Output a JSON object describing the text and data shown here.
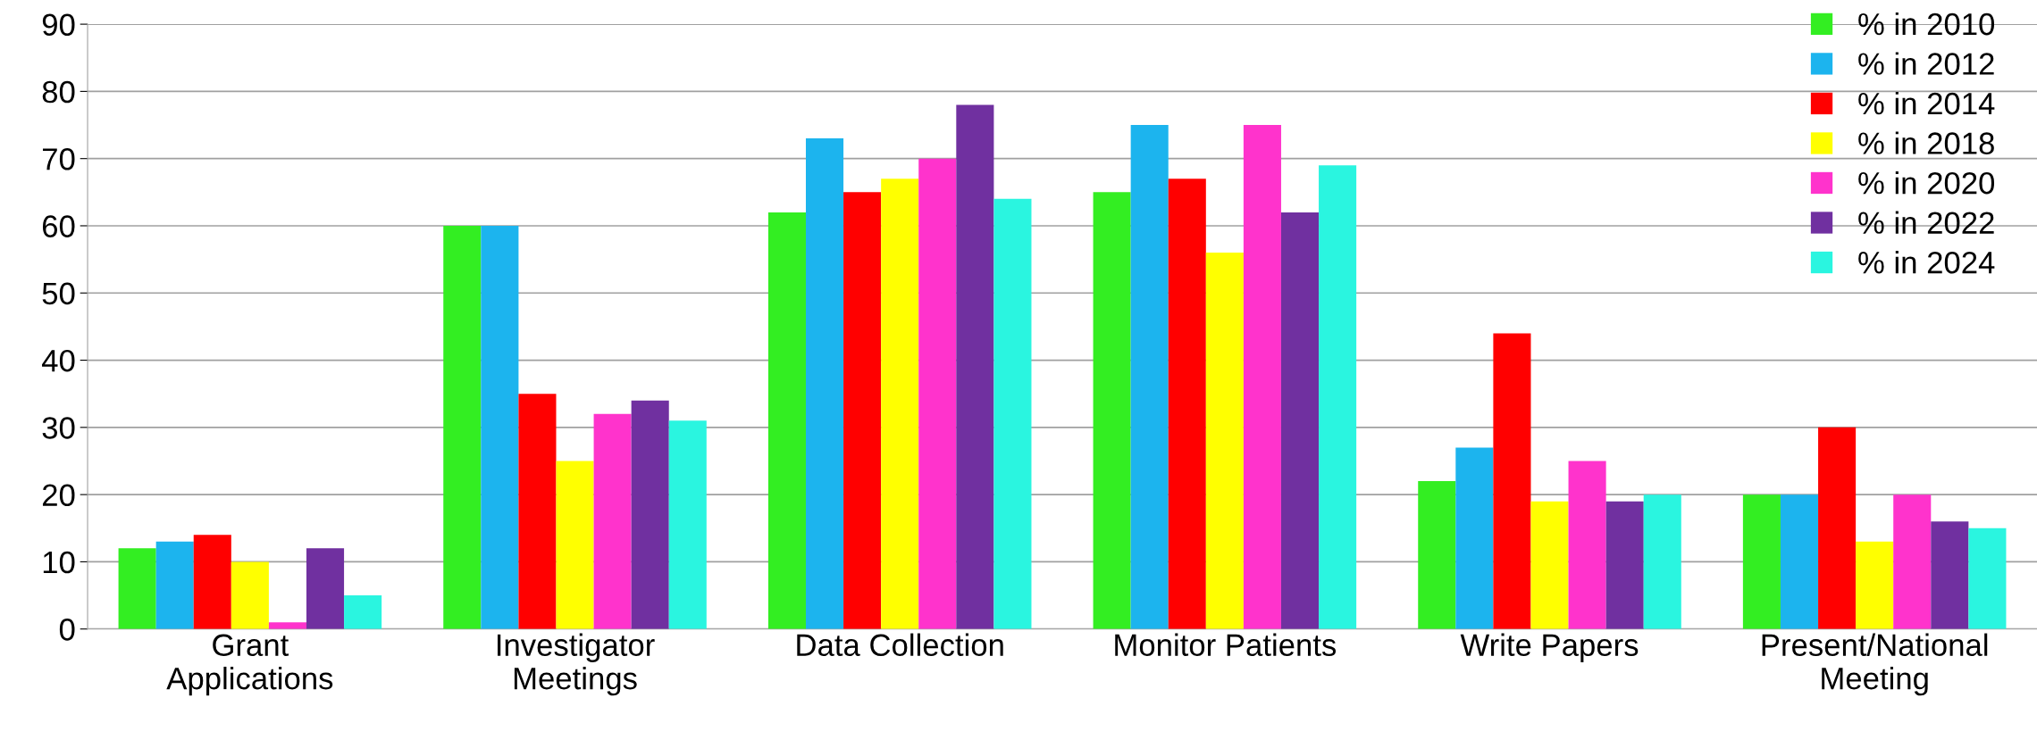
{
  "chart_data": {
    "type": "bar",
    "categories": [
      "Grant\nApplications",
      "Investigator\nMeetings",
      "Data Collection",
      "Monitor Patients",
      "Write Papers",
      "Present/National\nMeeting"
    ],
    "series": [
      {
        "name": "% in 2010",
        "color": "#33ee22",
        "values": [
          12,
          60,
          62,
          65,
          22,
          20
        ]
      },
      {
        "name": "% in 2012",
        "color": "#1cb4ee",
        "values": [
          13,
          60,
          73,
          75,
          27,
          20
        ]
      },
      {
        "name": "% in 2014",
        "color": "#ff0000",
        "values": [
          14,
          35,
          65,
          67,
          44,
          30
        ]
      },
      {
        "name": "% in 2018",
        "color": "#ffff00",
        "values": [
          10,
          25,
          67,
          56,
          19,
          13
        ]
      },
      {
        "name": "% in 2020",
        "color": "#ff33cc",
        "values": [
          1,
          32,
          70,
          75,
          25,
          20
        ]
      },
      {
        "name": "% in 2022",
        "color": "#7030a0",
        "values": [
          12,
          34,
          78,
          62,
          19,
          16
        ]
      },
      {
        "name": "% in 2024",
        "color": "#2af5e0",
        "values": [
          5,
          31,
          64,
          69,
          20,
          15
        ]
      }
    ],
    "ylim": [
      0,
      90
    ],
    "yticks": [
      0,
      10,
      20,
      30,
      40,
      50,
      60,
      70,
      80,
      90
    ],
    "grid": "y",
    "legend": "top right"
  }
}
